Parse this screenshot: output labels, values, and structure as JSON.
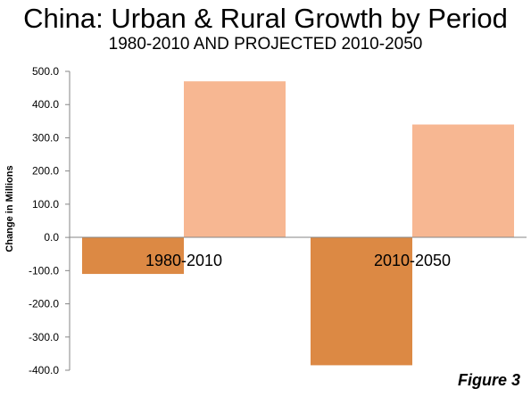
{
  "title": "China: Urban & Rural Growth by Period",
  "subtitle": "1980-2010 AND PROJECTED 2010-2050",
  "figure_label": "Figure 3",
  "chart_data": {
    "type": "bar",
    "categories": [
      "1980-2010",
      "2010-2050"
    ],
    "series": [
      {
        "values": [
          -110,
          -385
        ],
        "color": "#dc8944"
      },
      {
        "values": [
          470,
          340
        ],
        "color": "#f7b792"
      }
    ],
    "ylabel": "Change in Millions",
    "ylim": [
      -400,
      500
    ],
    "yticks": [
      "500.0",
      "400.0",
      "300.0",
      "200.0",
      "100.0",
      "0.0",
      "-100.0",
      "-200.0",
      "-300.0",
      "-400.0"
    ],
    "grid": false,
    "legend": "none"
  }
}
